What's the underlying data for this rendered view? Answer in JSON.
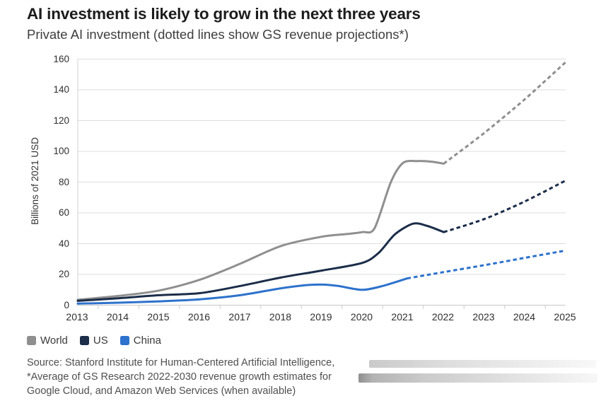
{
  "chart_data": {
    "type": "line",
    "title": "AI investment is likely to grow in the next three years",
    "subtitle": "Private AI investment (dotted lines show GS revenue projections*)",
    "ylabel": "Billions of 2021 USD",
    "xlabel": "",
    "ylim": [
      0,
      160
    ],
    "xlim": [
      2013,
      2025
    ],
    "y_ticks": [
      0,
      20,
      40,
      60,
      80,
      100,
      120,
      140,
      160
    ],
    "x_ticks": [
      2013,
      2014,
      2015,
      2016,
      2017,
      2018,
      2019,
      2020,
      2021,
      2022,
      2023,
      2024,
      2025
    ],
    "grid": "horizontal",
    "legend_position": "bottom-left",
    "line_style_note": "solid = actual investment, dashed = GS revenue projection",
    "series": [
      {
        "name": "World",
        "color": "#8f8f8f",
        "actual": {
          "x": [
            2013,
            2014,
            2015,
            2016,
            2017,
            2018,
            2019,
            2019.6,
            2020,
            2020.3,
            2020.7,
            2021,
            2021.35,
            2021.7,
            2022
          ],
          "y": [
            3.5,
            6,
            9.5,
            16.5,
            27,
            38.5,
            44.5,
            46.2,
            47.5,
            50,
            80,
            92.5,
            93.7,
            93.3,
            92
          ]
        },
        "projection": {
          "x": [
            2022,
            2023,
            2024,
            2025
          ],
          "y": [
            92,
            112,
            134,
            158
          ]
        }
      },
      {
        "name": "US",
        "color": "#1b2d49",
        "actual": {
          "x": [
            2013,
            2014,
            2015,
            2016,
            2017,
            2018,
            2019,
            2020,
            2020.4,
            2020.8,
            2021.25,
            2021.6,
            2022
          ],
          "y": [
            2.8,
            4.5,
            6.5,
            7.8,
            12.5,
            18,
            22.5,
            27.5,
            34,
            46,
            53,
            51.5,
            47.5
          ]
        },
        "projection": {
          "x": [
            2022,
            2023,
            2024,
            2025
          ],
          "y": [
            47.5,
            56,
            67.5,
            81
          ]
        }
      },
      {
        "name": "China",
        "color": "#2d72cc",
        "actual": {
          "x": [
            2013,
            2014,
            2015,
            2016,
            2017,
            2018,
            2018.6,
            2019,
            2019.4,
            2020,
            2020.5,
            2021.1
          ],
          "y": [
            1,
            1.6,
            2.5,
            3.8,
            6.5,
            11,
            13,
            13.4,
            12.5,
            10,
            12.5,
            17.4
          ]
        },
        "projection": {
          "x": [
            2021.1,
            2022,
            2023,
            2024,
            2025
          ],
          "y": [
            17.4,
            21.5,
            26,
            30.8,
            35.5
          ]
        }
      }
    ]
  },
  "source": {
    "lines": [
      "Source: Stanford Institute for Human-Centered Artificial Intelligence,",
      "*Average of GS Research 2022-2030 revenue growth estimates for",
      "Google Cloud, and Amazon Web Services (when available)"
    ]
  }
}
